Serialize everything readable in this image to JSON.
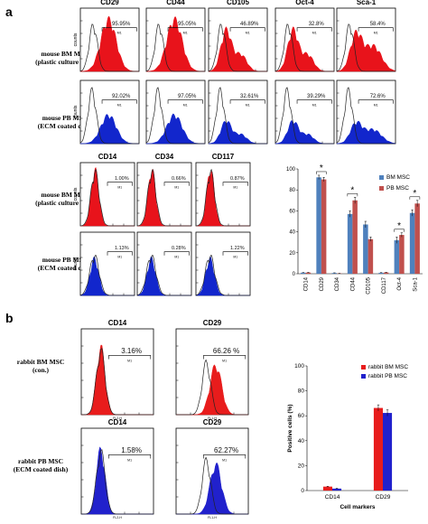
{
  "colors": {
    "red": "#e8131b",
    "blue": "#1226cc",
    "bm_bar": "#4f81bd",
    "pb_bar": "#c0504d",
    "rabbit_bm": "#e81c1c",
    "rabbit_pb": "#2121cc"
  },
  "panel_a": {
    "label": "a",
    "row_labels": {
      "bm_plastic": [
        "mouse BM MSC",
        "(plastic culture dish)"
      ],
      "pb_ecm": [
        "mouse PB MSC",
        "(ECM coated dish)"
      ]
    },
    "axis_label": "counts",
    "gate_label": "M1",
    "markers_top": [
      "CD29",
      "CD44",
      "CD105",
      "Oct-4",
      "Sca-1"
    ],
    "top_bm_pct": [
      "95.95%",
      "95.05%",
      "46.89%",
      "32.8%",
      "58.4%"
    ],
    "top_pb_pct": [
      "92.02%",
      "97.05%",
      "32.61%",
      "39.29%",
      "72.6%"
    ],
    "markers_mid": [
      "CD14",
      "CD34",
      "CD117"
    ],
    "mid_bm_pct": [
      "1.00%",
      "0.66%",
      "0.87%"
    ],
    "mid_pb_pct": [
      "1.13%",
      "0.28%",
      "1.22%"
    ]
  },
  "panel_b": {
    "label": "b",
    "markers": [
      "CD14",
      "CD29"
    ],
    "row_labels": {
      "bm": [
        "rabbit BM MSC",
        "(con.)"
      ],
      "pb": [
        "rabbit PB MSC",
        "(ECM coated dish)"
      ]
    },
    "bm_pct": [
      "3.16%",
      "66.26 %"
    ],
    "pb_pct": [
      "1.58%",
      "62.27%"
    ],
    "x_axis_label": "FL2-H",
    "x_axis_label_alt": "FL1-H"
  },
  "chart_data": [
    {
      "type": "bar",
      "categories": [
        "CD14",
        "CD29",
        "CD34",
        "CD44",
        "CD105",
        "CD117",
        "Oct-4",
        "Sca-1"
      ],
      "series": [
        {
          "name": "BM MSC",
          "values": [
            1.0,
            92,
            0.7,
            57,
            47,
            0.9,
            32,
            58
          ]
        },
        {
          "name": "PB MSC",
          "values": [
            1.1,
            90,
            0.3,
            70,
            33,
            1.2,
            37,
            67
          ]
        }
      ],
      "errors": [
        [
          0.2,
          2,
          0.2,
          3,
          3,
          0.2,
          3,
          3
        ],
        [
          0.2,
          2,
          0.1,
          3,
          2,
          0.2,
          2,
          3
        ]
      ],
      "significance": [
        "",
        "*",
        "",
        "*",
        "",
        "",
        "*",
        "*"
      ],
      "yticks": [
        0,
        20,
        40,
        60,
        80,
        100
      ],
      "ylim": [
        0,
        100
      ],
      "legend": "top-right"
    },
    {
      "type": "bar",
      "categories": [
        "CD14",
        "CD29"
      ],
      "series": [
        {
          "name": "rabbit BM MSC",
          "values": [
            3.16,
            66.26
          ]
        },
        {
          "name": "rabbit PB MSC",
          "values": [
            1.58,
            62.27
          ]
        }
      ],
      "errors": [
        [
          0.3,
          2.5
        ],
        [
          0.3,
          2.5
        ]
      ],
      "ylabel": "Positive cells (%)",
      "xlabel": "Cell markers",
      "yticks": [
        0,
        20,
        40,
        60,
        80,
        100
      ],
      "ylim": [
        0,
        100
      ],
      "legend": "top-right"
    }
  ]
}
